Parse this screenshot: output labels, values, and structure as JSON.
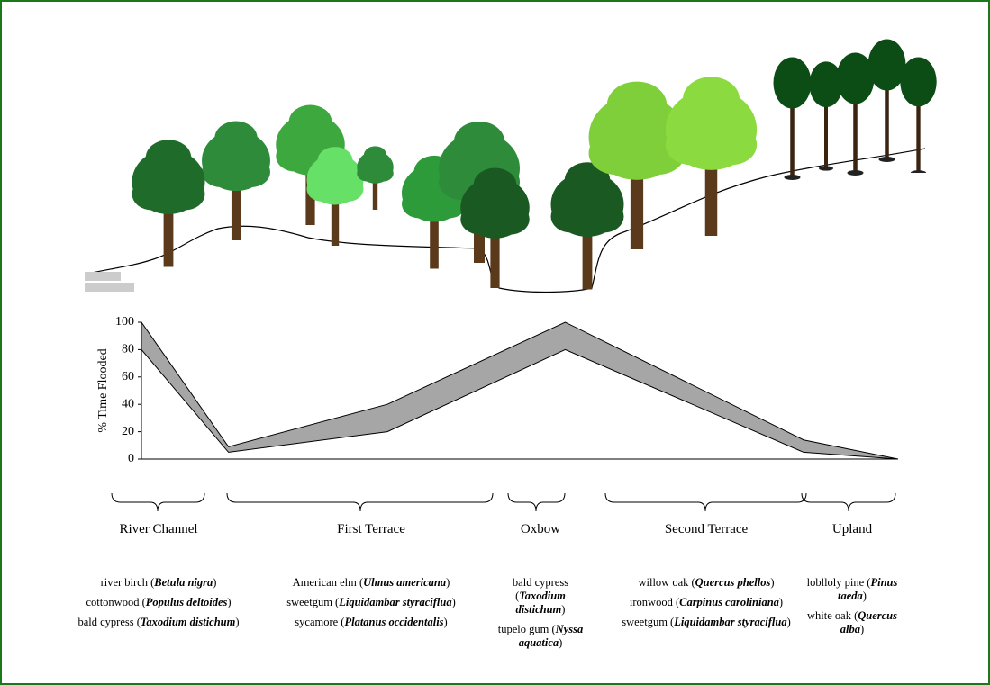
{
  "chart_data": {
    "type": "band",
    "ylabel": "% Time Flooded",
    "ylim": [
      0,
      100
    ],
    "yticks": [
      0,
      20,
      40,
      60,
      80,
      100
    ],
    "xlim": [
      0,
      100
    ],
    "x": [
      0,
      11.5,
      32.5,
      56,
      87.5,
      100
    ],
    "upper": [
      100,
      9,
      40,
      100,
      14,
      0
    ],
    "lower": [
      80,
      5,
      20,
      80,
      5,
      0
    ],
    "color": "#a6a6a6"
  },
  "zones": [
    {
      "label": "River Channel",
      "species": [
        [
          "river birch (",
          "Betula nigra",
          ")"
        ],
        [
          "cottonwood (",
          "Populus deltoides",
          ")"
        ],
        [
          "bald cypress (",
          "Taxodium distichum",
          ")"
        ]
      ]
    },
    {
      "label": "First Terrace",
      "species": [
        [
          "American elm (",
          "Ulmus americana",
          ")"
        ],
        [
          "sweetgum (",
          "Liquidambar styraciflua",
          ")"
        ],
        [
          "sycamore (",
          "Platanus occidentalis",
          ")"
        ]
      ]
    },
    {
      "label": "Oxbow",
      "species": [
        [
          "bald cypress (",
          "Taxodium distichum",
          ")"
        ],
        [
          "tupelo gum (",
          "Nyssa aquatica",
          ")"
        ]
      ]
    },
    {
      "label": "Second Terrace",
      "species": [
        [
          "willow oak (",
          "Quercus phellos",
          ")"
        ],
        [
          "ironwood (",
          "Carpinus caroliniana",
          ")"
        ],
        [
          "sweetgum (",
          "Liquidambar styraciflua",
          ")"
        ]
      ]
    },
    {
      "label": "Upland",
      "species": [
        [
          "loblloly pine (",
          "Pinus taeda",
          ")"
        ],
        [
          "white oak (",
          "Quercus alba",
          ")"
        ]
      ]
    }
  ]
}
